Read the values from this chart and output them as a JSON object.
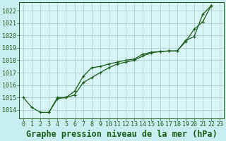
{
  "title": "Graphe pression niveau de la mer (hPa)",
  "bg_color": "#c8eef0",
  "plot_bg_color": "#d8f4f4",
  "grid_color": "#a0c8c8",
  "line_color": "#1a5c1a",
  "x_ticks": [
    0,
    1,
    2,
    3,
    4,
    5,
    6,
    7,
    8,
    9,
    10,
    11,
    12,
    13,
    14,
    15,
    16,
    17,
    18,
    19,
    20,
    21,
    22,
    23
  ],
  "y_ticks": [
    1014,
    1015,
    1016,
    1017,
    1018,
    1019,
    1020,
    1021,
    1022
  ],
  "ylim": [
    1013.3,
    1022.7
  ],
  "xlim": [
    -0.5,
    23.5
  ],
  "series1_x": [
    0,
    1,
    2,
    3,
    4,
    5,
    6,
    7,
    8,
    9,
    10,
    11,
    12,
    13,
    14,
    15,
    16,
    17,
    18,
    19,
    20,
    21,
    22
  ],
  "series1_y": [
    1015.0,
    1014.2,
    1013.8,
    1013.8,
    1015.0,
    1015.0,
    1015.5,
    1016.7,
    1017.4,
    1017.5,
    1017.7,
    1017.85,
    1018.0,
    1018.1,
    1018.5,
    1018.65,
    1018.7,
    1018.75,
    1018.75,
    1019.6,
    1019.9,
    1021.7,
    1022.4
  ],
  "series2_x": [
    3,
    4,
    5,
    6,
    7,
    8,
    9,
    10,
    11,
    12,
    13,
    14,
    15,
    16,
    17,
    18,
    19,
    20,
    21,
    22
  ],
  "series2_y": [
    1013.8,
    1014.9,
    1015.0,
    1015.2,
    1016.2,
    1016.6,
    1017.0,
    1017.4,
    1017.7,
    1017.85,
    1018.0,
    1018.35,
    1018.6,
    1018.7,
    1018.75,
    1018.75,
    1019.5,
    1020.5,
    1021.1,
    1022.4
  ],
  "title_fontsize": 8.5,
  "tick_fontsize": 6,
  "marker_size": 3.5,
  "linewidth": 0.9
}
